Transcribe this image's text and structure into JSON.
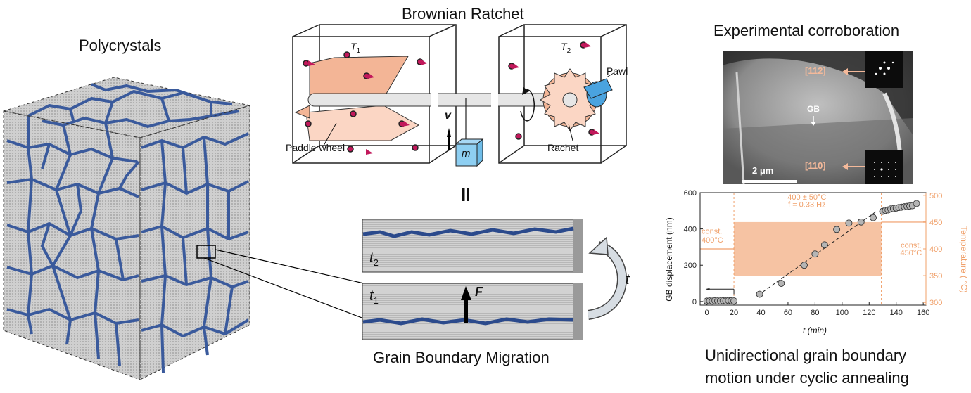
{
  "titles": {
    "polycrystals": "Polycrystals",
    "brownian": "Brownian Ratchet",
    "experimental": "Experimental corroboration",
    "gbm": "Grain Boundary Migration",
    "unidirectional_line1": "Unidirectional grain boundary",
    "unidirectional_line2": "motion under cyclic annealing"
  },
  "ratchet": {
    "t1_base": "T",
    "t1_sub": "1",
    "t2_base": "T",
    "t2_sub": "2",
    "paddle_label": "Paddle wheel",
    "pawl_label": "Pawl",
    "rachet_label": "Rachet",
    "velocity_label": "v",
    "mass_label": "m",
    "equals_sign": "II"
  },
  "gb": {
    "t2_base": "t",
    "t2_sub": "2",
    "t1_base": "t",
    "t1_sub": "1",
    "force_label": "F",
    "time_label": "t"
  },
  "tem": {
    "label_112": "[112]",
    "label_110": "[110]",
    "gb_label": "GB",
    "scalebar": "2 μm",
    "arrow_color": "#f4b99a"
  },
  "colors": {
    "boundary_blue": "#3a5a9c",
    "grain_gray": "#c8c8c8",
    "salmon": "#f3b596",
    "pink_particle": "#c2185b",
    "pawl_blue": "#4aa3df",
    "orange": "#f0a06a"
  },
  "chart_data": {
    "type": "scatter",
    "xlabel": "t (min)",
    "ylabel": "GB displacement (nm)",
    "y2label": "Temperature ( °C)",
    "xlim": [
      -5,
      162
    ],
    "ylim": [
      -20,
      600
    ],
    "y2lim": [
      295,
      505
    ],
    "xticks": [
      0,
      20,
      40,
      60,
      80,
      100,
      120,
      140,
      160
    ],
    "yticks": [
      0,
      200,
      400,
      600
    ],
    "y2ticks": [
      300,
      350,
      400,
      450,
      500
    ],
    "annotations": {
      "const400_line1": "const.",
      "const400_line2": "400°C",
      "const450_line1": "const.",
      "const450_line2": "450°C",
      "cyclic_line1": "400 ± 50°C",
      "cyclic_line2": "f = 0.33 Hz"
    },
    "phase_boundaries_min": [
      20,
      129
    ],
    "temperature_segments": [
      {
        "x": [
          -5,
          20
        ],
        "T": 400
      },
      {
        "band_x": [
          20,
          129
        ],
        "T_min": 350,
        "T_max": 450
      },
      {
        "x": [
          129,
          162
        ],
        "T": 450
      }
    ],
    "x": [
      0,
      2,
      4,
      6,
      8,
      10,
      12,
      14,
      16,
      18,
      20,
      39,
      55,
      72,
      80,
      87,
      96,
      105,
      114,
      123,
      130,
      132,
      134,
      136,
      138,
      140,
      142,
      144,
      146,
      148,
      150,
      152,
      155
    ],
    "y": [
      2,
      3,
      2,
      4,
      3,
      3,
      4,
      3,
      5,
      4,
      3,
      40,
      100,
      200,
      262,
      312,
      397,
      432,
      438,
      462,
      497,
      502,
      505,
      510,
      512,
      515,
      518,
      520,
      522,
      524,
      526,
      528,
      540
    ],
    "fit_line": {
      "x": [
        38,
        125
      ],
      "y": [
        35,
        495
      ]
    }
  }
}
